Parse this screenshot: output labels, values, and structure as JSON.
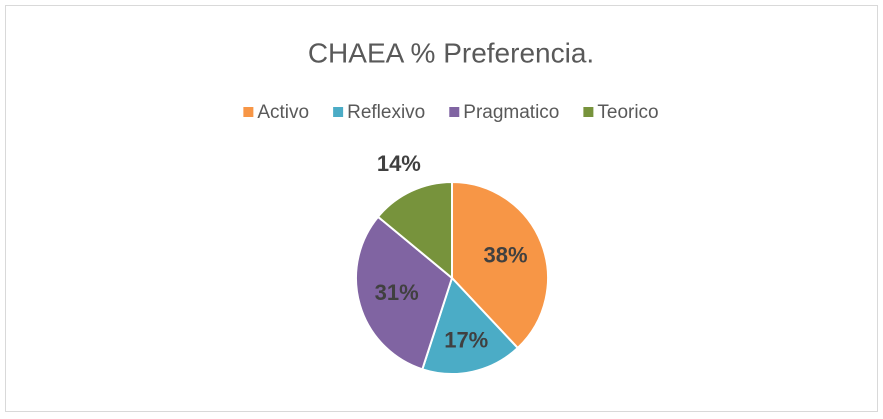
{
  "chart_data": {
    "type": "pie",
    "title": "CHAEA % Preferencia.",
    "categories": [
      "Activo",
      "Reflexivo",
      "Pragmatico",
      "Teorico"
    ],
    "values": [
      38,
      17,
      31,
      14
    ],
    "value_labels": [
      "38%",
      "17%",
      "31%",
      "14%"
    ],
    "colors": [
      "#f79646",
      "#4bacc6",
      "#8064a2",
      "#77933c"
    ],
    "legend": "top"
  }
}
